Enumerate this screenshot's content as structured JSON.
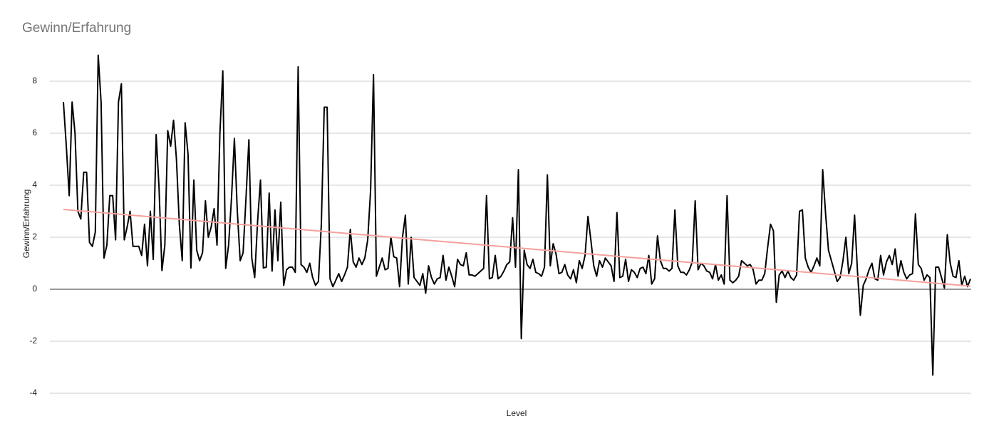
{
  "chart_data": {
    "type": "line",
    "title": "Gewinn/Erfahrung",
    "x_label": "Level",
    "y_label": "Gewinn/Erfahrung",
    "ylim": [
      -4,
      9
    ],
    "yticks": [
      -4,
      -2,
      0,
      2,
      4,
      6,
      8
    ],
    "grid": true,
    "color": "#000000",
    "trendline": {
      "color": "#f4a09c",
      "values": [
        3.07,
        0.12
      ]
    },
    "values": [
      7.2,
      5.5,
      3.6,
      7.2,
      6.0,
      3.0,
      2.7,
      4.5,
      4.5,
      1.8,
      1.65,
      2.2,
      9.0,
      7.2,
      1.2,
      1.7,
      3.6,
      3.6,
      1.9,
      7.2,
      7.9,
      1.9,
      2.4,
      3.0,
      1.65,
      1.65,
      1.65,
      1.3,
      2.5,
      0.9,
      3.0,
      1.15,
      5.95,
      3.9,
      0.72,
      1.7,
      6.1,
      5.5,
      6.5,
      5.0,
      2.5,
      1.1,
      6.4,
      5.2,
      0.82,
      4.2,
      1.5,
      1.1,
      1.4,
      3.4,
      2.0,
      2.4,
      3.1,
      1.7,
      6.0,
      8.4,
      0.8,
      1.7,
      3.5,
      5.8,
      3.0,
      1.1,
      1.4,
      3.5,
      5.75,
      1.2,
      0.45,
      2.6,
      4.2,
      0.82,
      0.85,
      3.7,
      0.7,
      3.05,
      1.1,
      3.35,
      0.15,
      0.75,
      0.85,
      0.85,
      0.65,
      8.55,
      0.95,
      0.85,
      0.65,
      1.0,
      0.45,
      0.15,
      0.3,
      2.5,
      7.0,
      7.0,
      0.4,
      0.1,
      0.35,
      0.6,
      0.3,
      0.55,
      0.85,
      2.3,
      1.05,
      0.85,
      1.2,
      0.95,
      1.2,
      1.9,
      3.8,
      8.25,
      0.5,
      0.85,
      1.2,
      0.75,
      0.8,
      2.0,
      1.25,
      1.2,
      0.1,
      2.0,
      2.85,
      0.2,
      2.0,
      0.45,
      0.3,
      0.15,
      0.6,
      -0.15,
      0.9,
      0.45,
      0.2,
      0.4,
      0.45,
      1.3,
      0.35,
      0.85,
      0.5,
      0.1,
      1.15,
      0.95,
      0.9,
      1.4,
      0.55,
      0.55,
      0.5,
      0.6,
      0.7,
      0.8,
      3.6,
      0.4,
      0.45,
      1.3,
      0.4,
      0.5,
      0.7,
      0.95,
      1.05,
      2.75,
      0.85,
      4.6,
      -1.9,
      1.5,
      0.95,
      0.8,
      1.15,
      0.65,
      0.6,
      0.5,
      0.85,
      4.4,
      0.9,
      1.75,
      1.35,
      0.6,
      0.65,
      0.95,
      0.55,
      0.4,
      0.75,
      0.25,
      1.1,
      0.8,
      1.3,
      2.8,
      1.9,
      0.9,
      0.5,
      1.1,
      0.85,
      1.2,
      1.05,
      0.9,
      0.3,
      2.95,
      0.45,
      0.5,
      1.15,
      0.3,
      0.75,
      0.65,
      0.45,
      0.8,
      0.85,
      0.6,
      1.3,
      0.2,
      0.4,
      2.05,
      1.1,
      0.8,
      0.8,
      0.7,
      0.8,
      3.05,
      0.9,
      0.65,
      0.65,
      0.55,
      0.75,
      1.05,
      3.4,
      0.75,
      1.0,
      0.9,
      0.7,
      0.65,
      0.4,
      0.95,
      0.35,
      0.55,
      0.2,
      3.6,
      0.35,
      0.25,
      0.35,
      0.5,
      1.1,
      1.0,
      0.9,
      0.95,
      0.75,
      0.2,
      0.35,
      0.35,
      0.6,
      1.6,
      2.5,
      2.25,
      -0.5,
      0.55,
      0.7,
      0.45,
      0.7,
      0.45,
      0.35,
      0.55,
      3.0,
      3.05,
      1.2,
      0.85,
      0.65,
      0.9,
      1.2,
      0.9,
      4.6,
      2.9,
      1.5,
      1.1,
      0.7,
      0.3,
      0.45,
      1.1,
      2.0,
      0.6,
      1.0,
      2.85,
      0.7,
      -1.0,
      0.15,
      0.4,
      0.75,
      1.0,
      0.4,
      0.35,
      1.3,
      0.55,
      1.05,
      1.3,
      0.95,
      1.55,
      0.5,
      1.1,
      0.65,
      0.4,
      0.55,
      0.6,
      2.9,
      0.95,
      0.8,
      0.35,
      0.55,
      0.45,
      -3.3,
      0.85,
      0.85,
      0.45,
      0.05,
      2.1,
      1.0,
      0.5,
      0.45,
      1.1,
      0.15,
      0.5,
      0.1,
      0.4
    ]
  }
}
